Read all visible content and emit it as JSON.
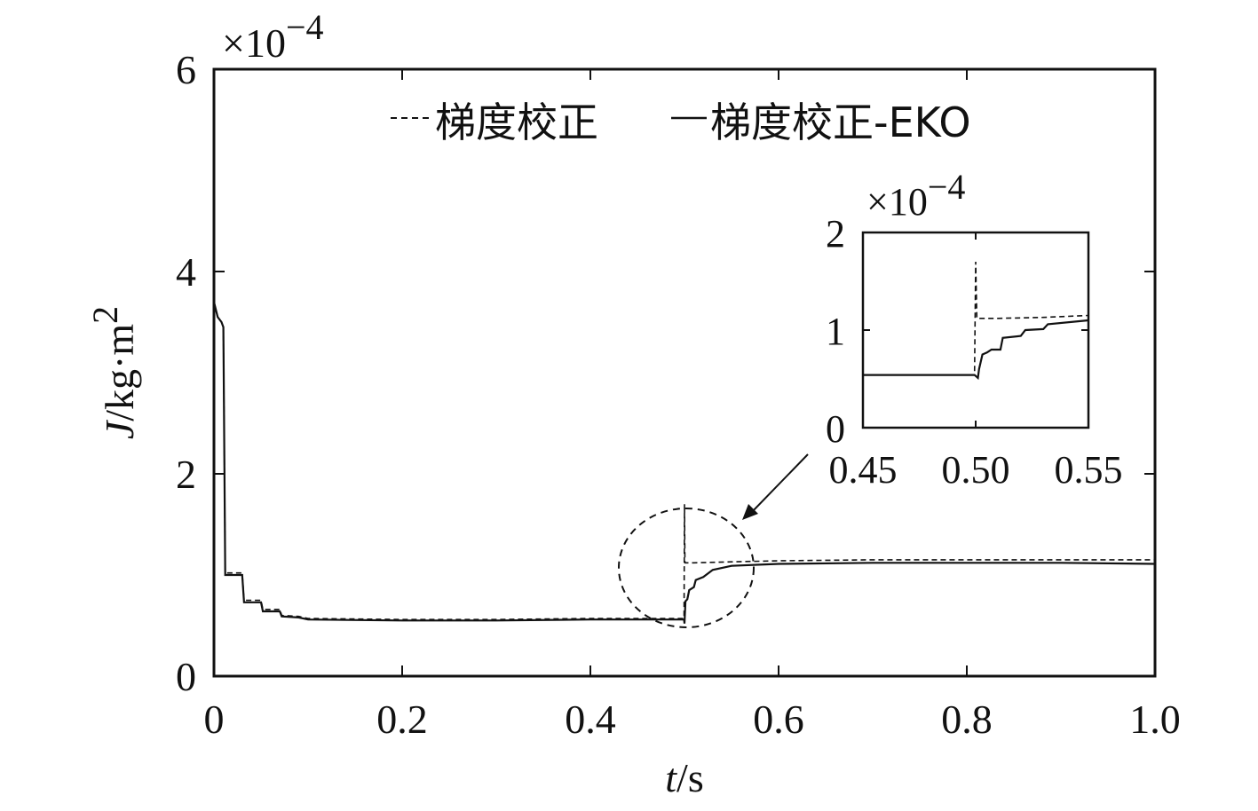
{
  "chart_data": [
    {
      "type": "line",
      "xlabel": {
        "italic": "t",
        "rest": "/s"
      },
      "ylabel": {
        "italic": "J",
        "rest": "/kg·m",
        "sup": "2"
      },
      "y_multiplier": {
        "prefix": "×10",
        "exponent": "−4"
      },
      "xlim": [
        0,
        1.0
      ],
      "ylim": [
        0,
        6
      ],
      "xticks": [
        0,
        0.2,
        0.4,
        0.6,
        0.8,
        1.0
      ],
      "xtick_labels": [
        "0",
        "0.2",
        "0.4",
        "0.6",
        "0.8",
        "1.0"
      ],
      "yticks": [
        0,
        2,
        4,
        6
      ],
      "ytick_labels": [
        "0",
        "2",
        "4",
        "6"
      ],
      "grid": false,
      "legend_position": "top",
      "series": [
        {
          "name": "梯度校正",
          "line_style": "dashed",
          "color": "#111111",
          "x": [
            0,
            0.004,
            0.008,
            0.01,
            0.012,
            0.03,
            0.032,
            0.05,
            0.052,
            0.07,
            0.072,
            0.09,
            0.1,
            0.2,
            0.3,
            0.4,
            0.49,
            0.4995,
            0.5,
            0.5005,
            0.51,
            0.55,
            0.6,
            0.7,
            0.8,
            0.9,
            1.0
          ],
          "y": [
            3.7,
            3.55,
            3.5,
            3.45,
            1.02,
            1.02,
            0.75,
            0.75,
            0.66,
            0.66,
            0.6,
            0.59,
            0.57,
            0.56,
            0.56,
            0.57,
            0.57,
            0.57,
            1.7,
            1.12,
            1.12,
            1.13,
            1.14,
            1.15,
            1.15,
            1.15,
            1.15
          ]
        },
        {
          "name": "梯度校正-EKO",
          "line_style": "solid",
          "color": "#111111",
          "x": [
            0,
            0.004,
            0.008,
            0.01,
            0.012,
            0.03,
            0.032,
            0.05,
            0.052,
            0.07,
            0.072,
            0.09,
            0.1,
            0.2,
            0.3,
            0.4,
            0.49,
            0.4995,
            0.5,
            0.501,
            0.503,
            0.505,
            0.51,
            0.512,
            0.52,
            0.53,
            0.55,
            0.6,
            0.7,
            0.8,
            0.9,
            1.0
          ],
          "y": [
            3.7,
            3.55,
            3.5,
            3.45,
            1.0,
            1.0,
            0.73,
            0.73,
            0.64,
            0.64,
            0.59,
            0.58,
            0.56,
            0.55,
            0.55,
            0.56,
            0.56,
            0.56,
            0.52,
            0.74,
            0.76,
            0.85,
            0.88,
            0.95,
            0.98,
            1.05,
            1.09,
            1.11,
            1.12,
            1.12,
            1.12,
            1.11
          ]
        }
      ]
    },
    {
      "type": "line",
      "role": "inset",
      "y_multiplier": {
        "prefix": "×10",
        "exponent": "−4"
      },
      "xlim": [
        0.45,
        0.55
      ],
      "ylim": [
        0,
        2
      ],
      "xticks": [
        0.45,
        0.5,
        0.55
      ],
      "xtick_labels": [
        "0.45",
        "0.50",
        "0.55"
      ],
      "yticks": [
        0,
        1,
        2
      ],
      "ytick_labels": [
        "0",
        "1",
        "2"
      ],
      "grid": false,
      "series": [
        {
          "name": "梯度校正",
          "line_style": "dashed",
          "color": "#111111",
          "x": [
            0.45,
            0.47,
            0.49,
            0.4995,
            0.5,
            0.5005,
            0.51,
            0.53,
            0.55
          ],
          "y": [
            0.54,
            0.54,
            0.54,
            0.54,
            1.7,
            1.12,
            1.12,
            1.13,
            1.15
          ]
        },
        {
          "name": "梯度校正-EKO",
          "line_style": "solid",
          "color": "#111111",
          "x": [
            0.45,
            0.47,
            0.49,
            0.4995,
            0.501,
            0.5015,
            0.503,
            0.505,
            0.507,
            0.511,
            0.512,
            0.52,
            0.522,
            0.53,
            0.532,
            0.55
          ],
          "y": [
            0.54,
            0.54,
            0.54,
            0.54,
            0.51,
            0.6,
            0.75,
            0.77,
            0.8,
            0.8,
            0.92,
            0.94,
            1.0,
            1.01,
            1.06,
            1.1
          ]
        }
      ]
    }
  ]
}
